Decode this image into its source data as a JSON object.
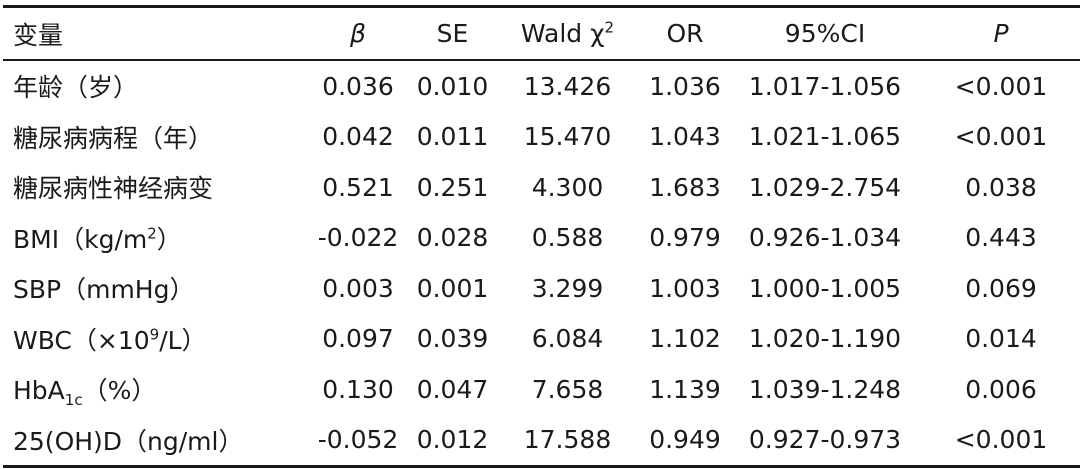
{
  "table": {
    "headers": {
      "variable": "变量",
      "beta": "β",
      "se": "SE",
      "wald": "Wald χ",
      "wald_sup": "2",
      "or": "OR",
      "ci": "95%CI",
      "p": "P"
    },
    "rows": [
      {
        "label": "年龄（岁）",
        "beta": "0.036",
        "se": "0.010",
        "wald": "13.426",
        "or": "1.036",
        "ci": "1.017-1.056",
        "p": "<0.001"
      },
      {
        "label": "糖尿病病程（年）",
        "beta": "0.042",
        "se": "0.011",
        "wald": "15.470",
        "or": "1.043",
        "ci": "1.021-1.065",
        "p": "<0.001"
      },
      {
        "label": "糖尿病性神经病变",
        "beta": "0.521",
        "se": "0.251",
        "wald": "4.300",
        "or": "1.683",
        "ci": "1.029-2.754",
        "p": "0.038"
      },
      {
        "label_pre": "BMI（kg/m",
        "label_sup": "2",
        "label_post": "）",
        "beta": "-0.022",
        "se": "0.028",
        "wald": "0.588",
        "or": "0.979",
        "ci": "0.926-1.034",
        "p": "0.443"
      },
      {
        "label": "SBP（mmHg）",
        "beta": "0.003",
        "se": "0.001",
        "wald": "3.299",
        "or": "1.003",
        "ci": "1.000-1.005",
        "p": "0.069"
      },
      {
        "label_pre": "WBC（×10",
        "label_sup": "9",
        "label_post": "/L）",
        "beta": "0.097",
        "se": "0.039",
        "wald": "6.084",
        "or": "1.102",
        "ci": "1.020-1.190",
        "p": "0.014"
      },
      {
        "label_pre": "HbA",
        "label_sub": "1c",
        "label_post": "（%）",
        "beta": "0.130",
        "se": "0.047",
        "wald": "7.658",
        "or": "1.139",
        "ci": "1.039-1.248",
        "p": "0.006"
      },
      {
        "label": "25(OH)D（ng/ml）",
        "beta": "-0.052",
        "se": "0.012",
        "wald": "17.588",
        "or": "0.949",
        "ci": "0.927-0.973",
        "p": "<0.001"
      }
    ]
  }
}
